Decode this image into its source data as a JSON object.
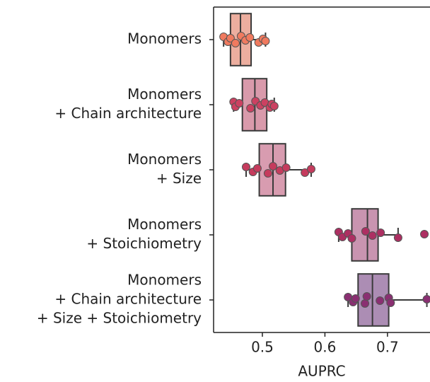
{
  "chart_data": {
    "type": "box",
    "orientation": "horizontal",
    "categories": [
      [
        "Monomers"
      ],
      [
        "Monomers",
        "+ Chain architecture"
      ],
      [
        "Monomers",
        "+ Size"
      ],
      [
        "Monomers",
        "+ Stoichiometry"
      ],
      [
        "Monomers",
        "+ Chain architecture",
        "+ Size + Stoichiometry"
      ]
    ],
    "xlabel": "AUPRC",
    "xlim": [
      0.422,
      0.768
    ],
    "xticks": [
      0.5,
      0.6,
      0.7
    ],
    "boxes": [
      {
        "whislo": 0.438,
        "q1": 0.449,
        "med": 0.465,
        "q3": 0.482,
        "whishi": 0.505,
        "box_color": "#ecae9f",
        "point_color": "#f07a5f",
        "points": [
          0.438,
          0.445,
          0.449,
          0.457,
          0.466,
          0.473,
          0.48,
          0.494,
          0.501,
          0.505
        ]
      },
      {
        "whislo": 0.454,
        "q1": 0.468,
        "med": 0.488,
        "q3": 0.507,
        "whishi": 0.519,
        "box_color": "#d99aab",
        "point_color": "#cc4161",
        "points": [
          0.454,
          0.457,
          0.463,
          0.481,
          0.489,
          0.497,
          0.504,
          0.512,
          0.515,
          0.519
        ]
      },
      {
        "whislo": 0.474,
        "q1": 0.495,
        "med": 0.517,
        "q3": 0.537,
        "whishi": 0.578,
        "box_color": "#d89cb0",
        "point_color": "#c53b5d",
        "points": [
          0.474,
          0.485,
          0.492,
          0.509,
          0.517,
          0.528,
          0.538,
          0.568,
          0.578
        ]
      },
      {
        "whislo": 0.622,
        "q1": 0.643,
        "med": 0.668,
        "q3": 0.685,
        "whishi": 0.717,
        "box_color": "#c994b0",
        "point_color": "#ad2f62",
        "points": [
          0.622,
          0.628,
          0.637,
          0.643,
          0.665,
          0.676,
          0.689,
          0.717,
          0.759
        ]
      },
      {
        "whislo": 0.637,
        "q1": 0.653,
        "med": 0.676,
        "q3": 0.702,
        "whishi": 0.763,
        "box_color": "#ac8db4",
        "point_color": "#8a2f72",
        "points": [
          0.637,
          0.645,
          0.649,
          0.664,
          0.667,
          0.688,
          0.702,
          0.705,
          0.763
        ]
      }
    ]
  }
}
